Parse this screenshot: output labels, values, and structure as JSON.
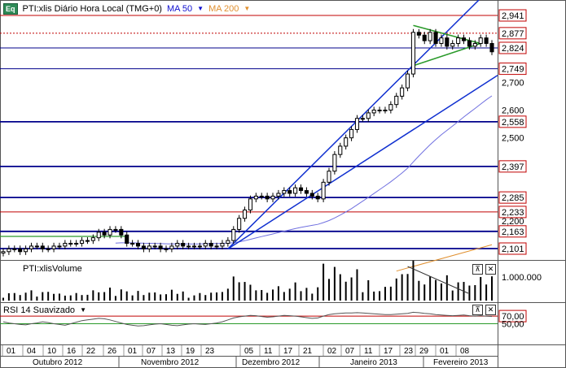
{
  "main_pane": {
    "symbol_label": "PTI:xlis Diário Hora Local (TMG+0)",
    "badge": "Eq",
    "indicators": [
      {
        "label": "MA 50",
        "color": "#1010d0"
      },
      {
        "label": "MA 200",
        "color": "#e09030"
      }
    ],
    "price_tags": [
      {
        "value": "2,941",
        "level": 2.941,
        "box": true
      },
      {
        "value": "2,877",
        "level": 2.877,
        "box": true
      },
      {
        "value": "2,824",
        "level": 2.824,
        "box": true
      },
      {
        "value": "2,749",
        "level": 2.749,
        "box": true
      },
      {
        "value": "2,700",
        "level": 2.7,
        "box": false
      },
      {
        "value": "2,600",
        "level": 2.6,
        "box": false
      },
      {
        "value": "2,558",
        "level": 2.558,
        "box": true
      },
      {
        "value": "2,500",
        "level": 2.5,
        "box": false
      },
      {
        "value": "2,397",
        "level": 2.397,
        "box": true
      },
      {
        "value": "2,285",
        "level": 2.285,
        "box": true
      },
      {
        "value": "2,233",
        "level": 2.233,
        "box": true
      },
      {
        "value": "2,200",
        "level": 2.2,
        "box": false
      },
      {
        "value": "2,163",
        "level": 2.163,
        "box": true
      },
      {
        "value": "2,101",
        "level": 2.101,
        "box": true
      }
    ],
    "colors": {
      "support_line": "#00008b",
      "resistance_line": "#c00000",
      "trend": "#1030d0",
      "triangle": "#2a9a2a",
      "up_candle": "#ffffff",
      "down_candle": "#000000"
    }
  },
  "volume_pane": {
    "label": "PTI:xlisVolume",
    "tag": "1.000.000"
  },
  "rsi_pane": {
    "label": "RSI 14 Suavizado",
    "levels": [
      {
        "value": "70,00",
        "box": true
      },
      {
        "value": "50,00",
        "box": false
      }
    ],
    "colors": {
      "line": "#555555",
      "upper": "#c00000",
      "lower": "#2a9a2a"
    }
  },
  "x_axis": {
    "ticks": [
      "01",
      "04",
      "10",
      "16",
      "22",
      "26",
      "01",
      "07",
      "13",
      "19",
      "23",
      "05",
      "11",
      "17",
      "21",
      "02",
      "07",
      "11",
      "17",
      "23",
      "29",
      "01",
      "08"
    ],
    "months": [
      "Outubro 2012",
      "Novembro 2012",
      "Dezembro 2012",
      "Janeiro 2013",
      "Fevereiro 2013"
    ]
  },
  "pane_controls": {
    "min": "⊼",
    "close": "✕"
  },
  "chart_data": [
    {
      "type": "line",
      "role": "price-candlestick",
      "note_series": "approximate daily closes",
      "x_range_days": [
        "2012-10-01",
        "2013-02-08"
      ],
      "y_min": 2.05,
      "y_max": 2.98,
      "horizontal_levels": [
        2.941,
        2.877,
        2.824,
        2.749,
        2.558,
        2.397,
        2.285,
        2.233,
        2.163,
        2.101
      ],
      "series": [
        {
          "values": [
            2.09,
            2.1,
            2.1,
            2.09,
            2.1,
            2.11,
            2.11,
            2.1,
            2.1,
            2.11,
            2.11,
            2.12,
            2.12,
            2.12,
            2.13,
            2.13,
            2.14,
            2.16,
            2.15,
            2.17,
            2.17,
            2.15,
            2.12,
            2.12,
            2.11,
            2.1,
            2.11,
            2.11,
            2.1,
            2.1,
            2.11,
            2.12,
            2.11,
            2.11,
            2.11,
            2.11,
            2.12,
            2.11,
            2.11,
            2.12,
            2.13,
            2.17,
            2.21,
            2.24,
            2.28,
            2.29,
            2.29,
            2.28,
            2.29,
            2.3,
            2.31,
            2.3,
            2.32,
            2.31,
            2.3,
            2.29,
            2.28,
            2.34,
            2.38,
            2.44,
            2.47,
            2.5,
            2.53,
            2.57,
            2.57,
            2.59,
            2.6,
            2.6,
            2.6,
            2.62,
            2.65,
            2.68,
            2.73,
            2.88,
            2.87,
            2.85,
            2.88,
            2.84,
            2.86,
            2.83,
            2.84,
            2.86,
            2.85,
            2.83,
            2.84,
            2.86,
            2.84,
            2.81
          ]
        }
      ]
    },
    {
      "type": "bar",
      "role": "volume",
      "tag_value": 1000000
    },
    {
      "type": "line",
      "role": "rsi",
      "ylim": [
        0,
        100
      ],
      "levels": [
        70,
        50
      ],
      "series": [
        {
          "values": [
            55,
            52,
            50,
            48,
            47,
            50,
            52,
            55,
            53,
            50,
            48,
            46,
            50,
            54,
            58,
            60,
            62,
            64,
            63,
            60,
            56,
            52,
            48,
            46,
            44,
            45,
            47,
            49,
            50,
            48,
            46,
            45,
            47,
            49,
            50,
            49,
            48,
            50,
            52,
            55,
            60,
            65,
            68,
            70,
            72,
            71,
            69,
            67,
            68,
            70,
            72,
            71,
            70,
            68,
            66,
            64,
            65,
            70,
            74,
            76,
            77,
            78,
            78,
            79,
            78,
            77,
            76,
            75,
            74,
            74,
            75,
            76,
            77,
            80,
            79,
            77,
            76,
            74,
            73,
            72,
            71,
            72,
            73,
            71,
            70,
            71,
            70,
            69
          ]
        }
      ]
    }
  ]
}
